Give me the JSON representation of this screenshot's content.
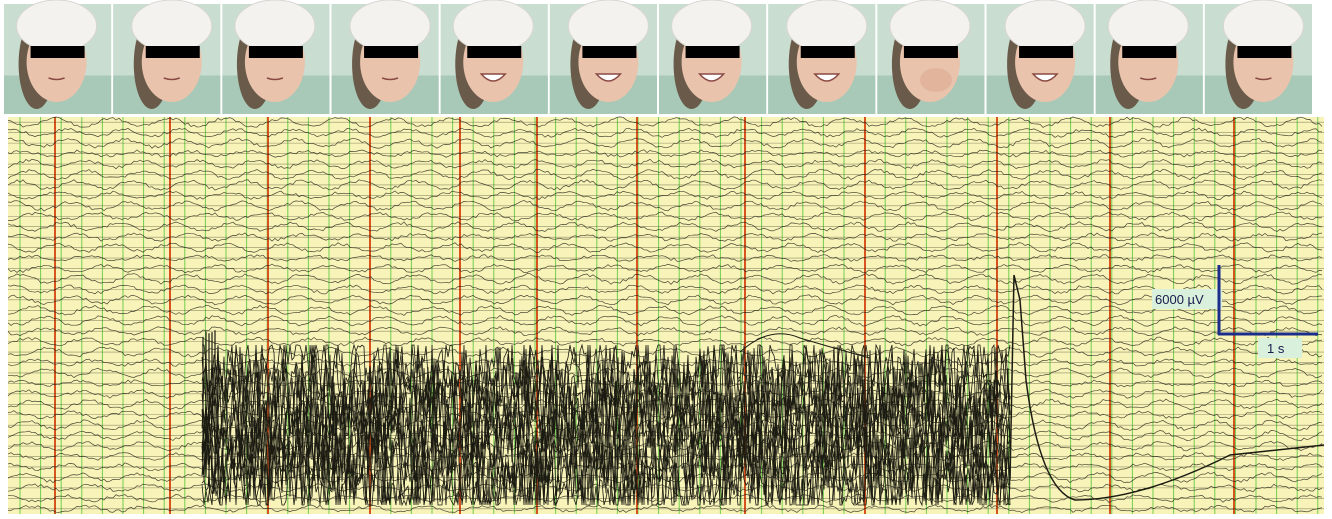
{
  "figure": {
    "video_frame_count": 12,
    "frame_subject": "patient-face-with-eye-bar",
    "expressions": [
      "neutral",
      "neutral",
      "neutral",
      "neutral",
      "smile",
      "smile",
      "smile",
      "smile",
      "laugh-hand-over-mouth",
      "smile",
      "neutral",
      "neutral"
    ],
    "eeg_channel_count": 38,
    "colors": {
      "paper": "#f8f3b8",
      "grid_green": "#6fcf4e",
      "grid_orange": "#d9531e",
      "grid_horizontal": "#3a3a2a",
      "trace": "#1b1b12",
      "scale_bar": "#1a2d8a",
      "label_bg": "#d8f0dc",
      "eye_bar": "#000000"
    },
    "scale": {
      "voltage_label": "6000 µV",
      "time_label": "1 s"
    },
    "annotation_words": [
      "seizure-burst",
      "post-ictal-slow-wave"
    ]
  }
}
